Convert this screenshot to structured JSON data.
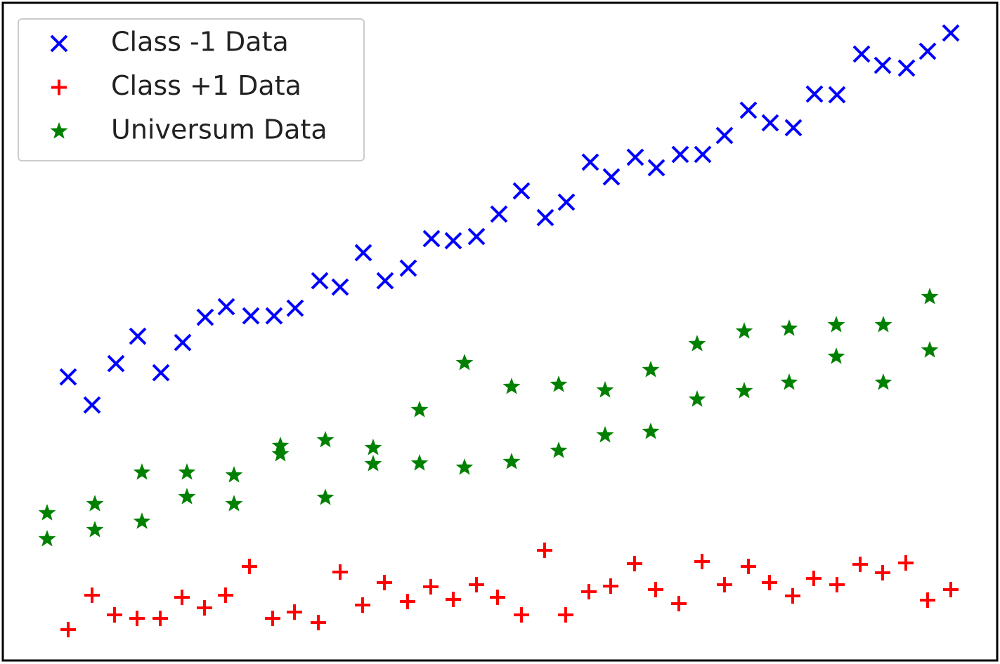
{
  "chart_data": {
    "type": "scatter",
    "xlim": [
      5,
      1418
    ],
    "ylim": [
      6,
      941
    ],
    "legend": "upper left",
    "series": [
      {
        "name": "Class -1 Data",
        "color": "#0000ff",
        "marker": "x",
        "x": [
          97,
          131,
          165,
          196,
          229,
          260,
          292,
          322,
          357,
          390,
          420,
          455,
          484,
          517,
          548,
          581,
          614,
          645,
          678,
          710,
          742,
          776,
          806,
          840,
          870,
          904,
          934,
          968,
          1000,
          1031,
          1065,
          1096,
          1129,
          1159,
          1191,
          1226,
          1256,
          1290,
          1320,
          1353
        ],
        "values": [
          409,
          369,
          428,
          467,
          415,
          458,
          494,
          509,
          496,
          496,
          507,
          546,
          537,
          586,
          546,
          564,
          606,
          603,
          609,
          641,
          674,
          636,
          658,
          715,
          694,
          722,
          707,
          726,
          726,
          753,
          789,
          771,
          764,
          812,
          811,
          869,
          853,
          849,
          873,
          899
        ]
      },
      {
        "name": "Class +1 Data",
        "color": "#ff0000",
        "marker": "+",
        "x": [
          97,
          131,
          163,
          195,
          228,
          259,
          291,
          321,
          355,
          388,
          419,
          453,
          484,
          516,
          547,
          580,
          613,
          645,
          678,
          708,
          742,
          775,
          805,
          838,
          869,
          903,
          933,
          966,
          999,
          1031,
          1065,
          1095,
          1128,
          1158,
          1191,
          1224,
          1256,
          1289,
          1320,
          1353
        ],
        "values": [
          49,
          98,
          70,
          65,
          65,
          95,
          80,
          98,
          139,
          65,
          74,
          59,
          131,
          84,
          116,
          89,
          110,
          92,
          113,
          95,
          70,
          162,
          70,
          103,
          111,
          143,
          106,
          86,
          146,
          113,
          139,
          116,
          97,
          122,
          113,
          142,
          130,
          144,
          91,
          106
        ]
      },
      {
        "name": "Universum Data",
        "color": "#008000",
        "marker": "*",
        "x": [
          67,
          67,
          135,
          135,
          202,
          202,
          266,
          266,
          333,
          333,
          399,
          399,
          463,
          463,
          531,
          531,
          597,
          597,
          661,
          661,
          728,
          728,
          795,
          795,
          861,
          861,
          926,
          926,
          992,
          992,
          1059,
          1059,
          1123,
          1123,
          1190,
          1190,
          1257,
          1257,
          1323,
          1323
        ],
        "values": [
          215,
          178,
          228,
          191,
          273,
          203,
          273,
          238,
          269,
          228,
          311,
          299,
          319,
          237,
          308,
          285,
          362,
          286,
          429,
          280,
          395,
          288,
          398,
          304,
          390,
          326,
          419,
          331,
          456,
          377,
          474,
          389,
          478,
          401,
          483,
          438,
          483,
          401,
          523,
          447
        ]
      }
    ]
  }
}
